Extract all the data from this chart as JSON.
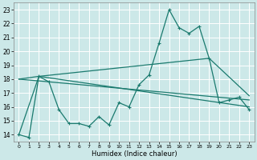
{
  "title": "",
  "xlabel": "Humidex (Indice chaleur)",
  "xlim": [
    -0.5,
    23.5
  ],
  "ylim": [
    13.5,
    23.5
  ],
  "yticks": [
    14,
    15,
    16,
    17,
    18,
    19,
    20,
    21,
    22,
    23
  ],
  "xticks": [
    0,
    1,
    2,
    3,
    4,
    5,
    6,
    7,
    8,
    9,
    10,
    11,
    12,
    13,
    14,
    15,
    16,
    17,
    18,
    19,
    20,
    21,
    22,
    23
  ],
  "xtick_labels": [
    "0",
    "1",
    "2",
    "3",
    "4",
    "5",
    "6",
    "7",
    "8",
    "9",
    "10",
    "11",
    "12",
    "13",
    "14",
    "15",
    "16",
    "17",
    "18",
    "19",
    "20",
    "21",
    "22",
    "23"
  ],
  "background_color": "#cce8e8",
  "grid_color": "#ffffff",
  "line_color": "#1a7a6e",
  "line1_x": [
    0,
    1,
    2,
    3,
    4,
    5,
    6,
    7,
    8,
    9,
    10,
    11,
    12,
    13,
    14,
    15,
    16,
    17,
    18,
    19,
    20,
    21,
    22,
    23
  ],
  "line1_y": [
    14.0,
    13.8,
    18.2,
    17.8,
    15.8,
    14.8,
    14.8,
    14.6,
    15.3,
    14.7,
    16.3,
    16.0,
    17.6,
    18.3,
    20.6,
    23.0,
    21.7,
    21.3,
    21.8,
    19.5,
    16.3,
    16.5,
    16.7,
    15.8
  ],
  "line2_x": [
    0,
    2,
    23
  ],
  "line2_y": [
    18.0,
    18.2,
    16.0
  ],
  "line3_x": [
    0,
    2,
    19,
    23
  ],
  "line3_y": [
    14.0,
    18.2,
    19.5,
    16.8
  ],
  "line4_x": [
    0,
    23
  ],
  "line4_y": [
    18.0,
    16.5
  ]
}
